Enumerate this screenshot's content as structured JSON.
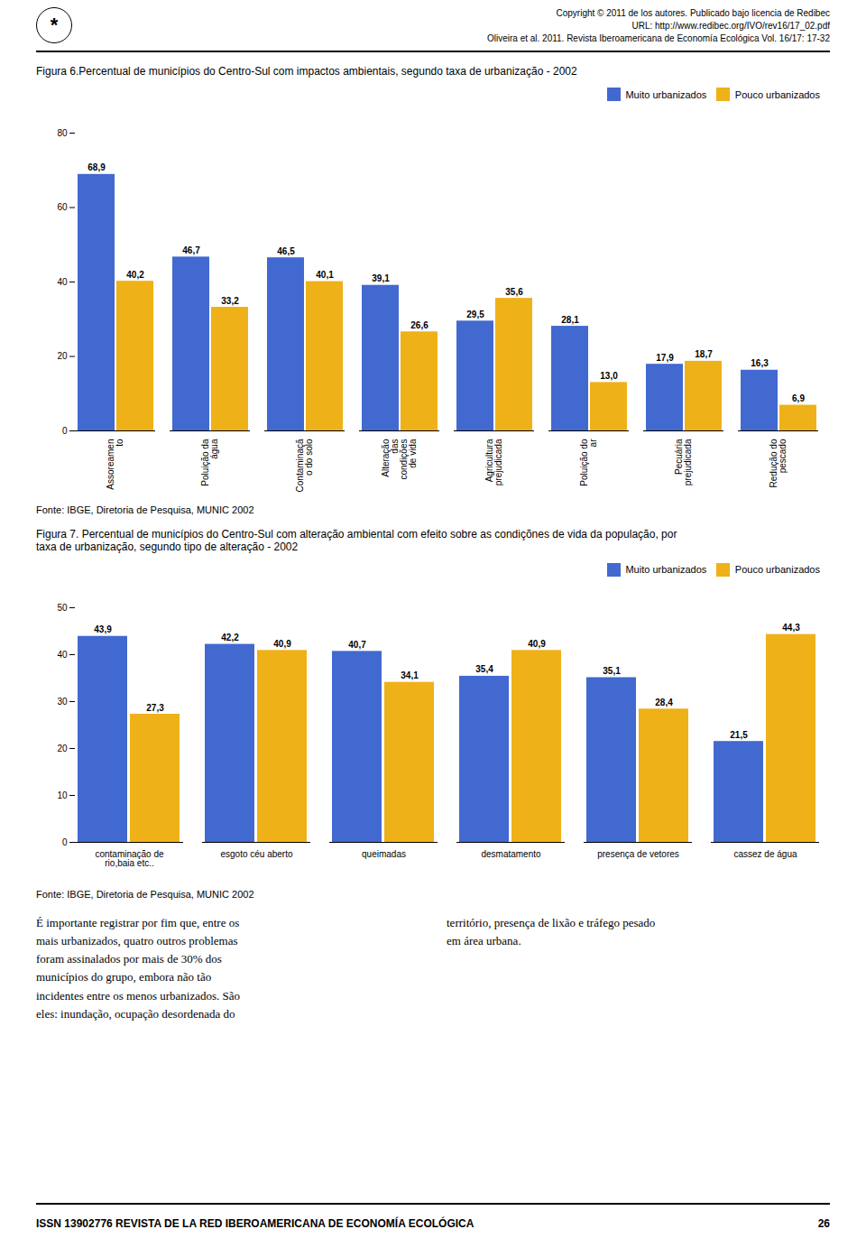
{
  "header_lines": [
    "Copyright © 2011 de los autores. Publicado bajo licencia de Redibec",
    "URL: http://www.redibec.org/IVO/rev16/17_02.pdf",
    "Oliveira et al. 2011. Revista Iberoamericana de Economía Ecológica Vol. 16/17: 17-32"
  ],
  "logo": "*",
  "chart_data": [
    {
      "type": "bar",
      "title": "Figura 6.Percentual de municípios do Centro-Sul com impactos ambientais, segundo taxa de urbanização - 2002",
      "caption": "Fonte: IBGE, Diretoria de Pesquisa, MUNIC 2002",
      "categories": [
        "Assoreamen\nto",
        "Poluição da\nágua",
        "Contaminaçã\no do solo",
        "Alteração\ndas\ncondições\nde vida",
        "Agricultura\nprejudicada",
        "Poluição do\nar",
        "Pecuária\nprejudicada",
        "Redução do\npescado"
      ],
      "series": [
        {
          "name": "Muito urbanizados",
          "values": [
            68.9,
            46.7,
            46.5,
            39.1,
            29.5,
            28.1,
            17.9,
            16.3
          ],
          "value_labels": [
            "68,9",
            "46,7",
            "46,5",
            "39,1",
            "29,5",
            "28,1",
            "17,9",
            "16,3"
          ]
        },
        {
          "name": "Pouco urbanizados",
          "values": [
            40.2,
            33.2,
            40.1,
            26.6,
            35.6,
            13.0,
            18.7,
            6.9
          ],
          "value_labels": [
            "40,2",
            "33,2",
            "40,1",
            "26,6",
            "35,6",
            "13,0",
            "18,7",
            "6,9"
          ]
        }
      ],
      "ylim": [
        0,
        80
      ],
      "yticks": [
        0,
        20,
        40,
        60,
        80
      ],
      "data_labels": true,
      "legend": "upper right",
      "grid": false
    },
    {
      "type": "bar",
      "title": "Figura 7. Percentual de municípios do Centro-Sul com alteração ambiental com efeito sobre as condiçõnes de vida da população, por\ntaxa de urbanização, segundo tipo de alteração - 2002",
      "caption": "Fonte: IBGE, Diretoria de Pesquisa, MUNIC 2002",
      "categories": [
        "contaminação de\nrio,baia etc..",
        "esgoto céu aberto",
        "queimadas",
        "desmatamento",
        "presença de vetores",
        "cassez de água"
      ],
      "series": [
        {
          "name": "Muito urbanizados",
          "values": [
            43.9,
            42.2,
            40.7,
            35.4,
            35.1,
            21.5
          ],
          "value_labels": [
            "43,9",
            "42,2",
            "40,7",
            "35,4",
            "35,1",
            "21,5"
          ]
        },
        {
          "name": "Pouco urbanizados",
          "values": [
            27.3,
            40.9,
            34.1,
            40.9,
            28.4,
            44.3
          ],
          "value_labels": [
            "27,3",
            "40,9",
            "34,1",
            "40,9",
            "28,4",
            "44,3"
          ]
        }
      ],
      "ylim": [
        0,
        50
      ],
      "yticks": [
        0,
        10,
        20,
        30,
        40,
        50
      ],
      "data_labels": true,
      "legend": "upper right",
      "grid": false
    }
  ],
  "body_text": [
    "É importante registrar por fim que, entre os\nmais urbanizados, quatro outros problemas\nforam assinalados por mais de 30% dos\nmunicípios do grupo, embora não tão\nincidentes entre os menos urbanizados. São\neles: inundação, ocupação desordenada do",
    "território, presença de lixão e tráfego pesado\nem área urbana."
  ],
  "footer_text": "ISSN  13902776  REVISTA DE LA RED IBEROAMERICANA DE ECONOMÍA ECOLÓGICA",
  "page_number": "26"
}
